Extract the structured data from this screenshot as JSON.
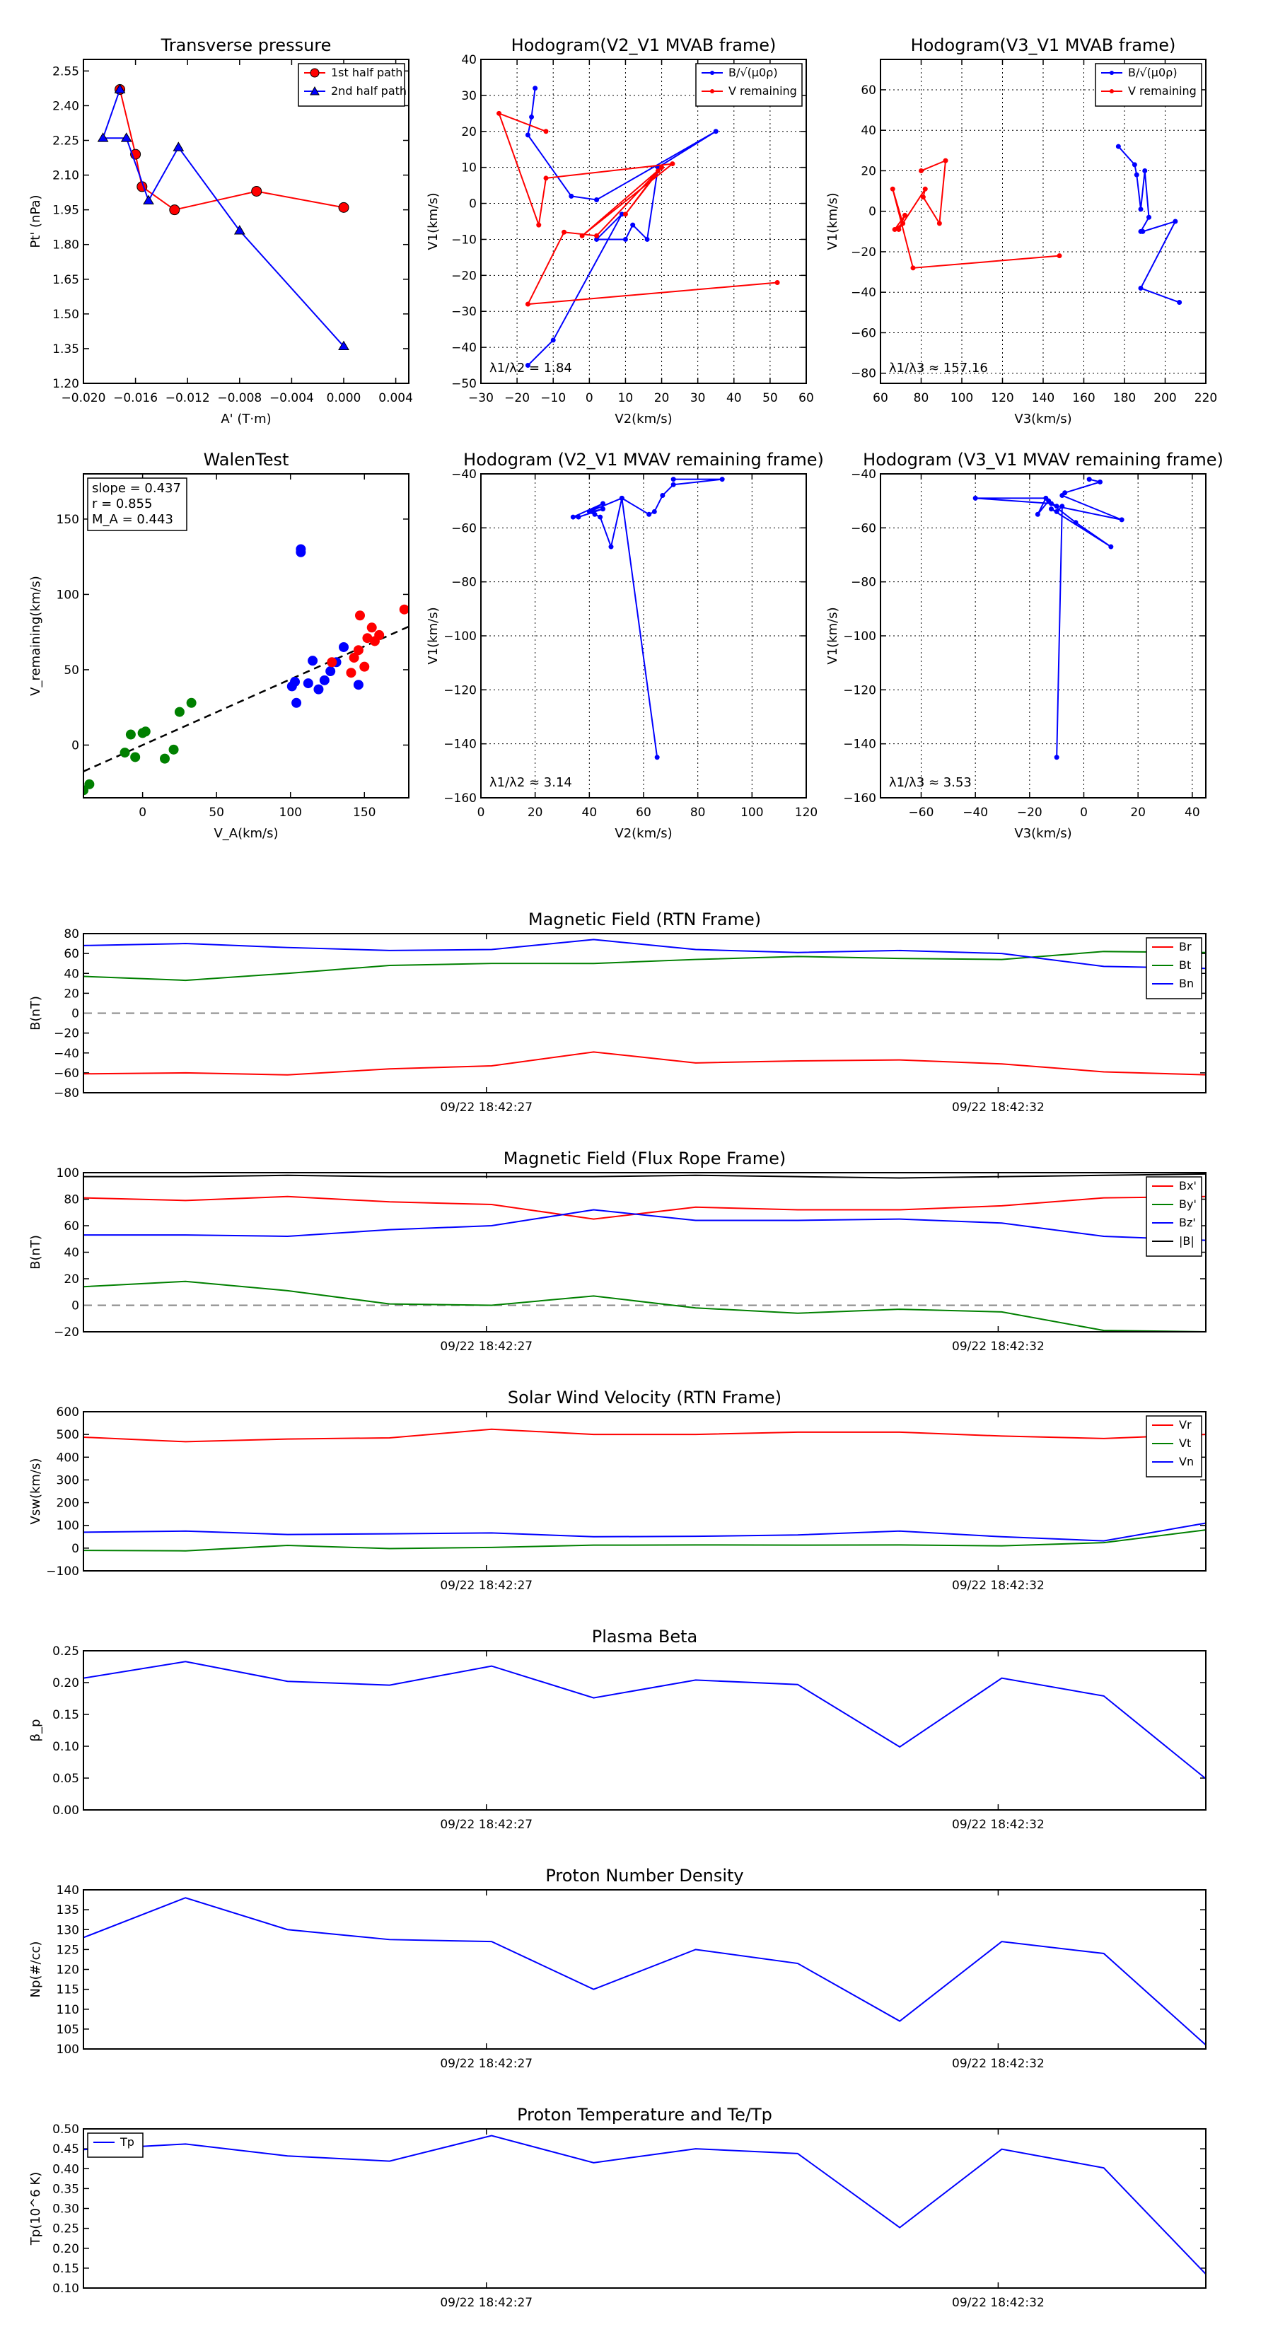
{
  "figure_title": "",
  "time_ticks": [
    "09/22 18:42:27",
    "09/22 18:42:32"
  ],
  "chart_data": [
    {
      "id": "transverse",
      "type": "scatter",
      "title": "Transverse pressure",
      "xlabel": "A' (T·m)",
      "ylabel": "Pt' (nPa)",
      "xlim": [
        -0.02,
        0.005
      ],
      "ylim": [
        1.2,
        2.6
      ],
      "xticks": [
        -0.02,
        -0.016,
        -0.012,
        -0.008,
        -0.004,
        0.0,
        0.004
      ],
      "xtick_labels": [
        "−0.020",
        "−0.016",
        "−0.012",
        "−0.008",
        "−0.004",
        "0.000",
        "0.004"
      ],
      "yticks": [
        1.2,
        1.35,
        1.5,
        1.65,
        1.8,
        1.95,
        2.1,
        2.25,
        2.4,
        2.55
      ],
      "ytick_labels": [
        "1.20",
        "1.35",
        "1.50",
        "1.65",
        "1.80",
        "1.95",
        "2.10",
        "2.25",
        "2.40",
        "2.55"
      ],
      "legend": "top-right",
      "series": [
        {
          "name": "1st half path",
          "color": "#ff0000",
          "marker": "circle",
          "x": [
            0.0,
            -0.0067,
            -0.013,
            -0.0155,
            -0.016,
            -0.0172
          ],
          "y": [
            1.96,
            2.03,
            1.95,
            2.05,
            2.19,
            2.47
          ]
        },
        {
          "name": "2nd half path",
          "color": "#0000ff",
          "marker": "triangle",
          "x": [
            -0.0172,
            -0.0185,
            -0.0167,
            -0.015,
            -0.0127,
            -0.008,
            0.0
          ],
          "y": [
            2.47,
            2.26,
            2.26,
            1.99,
            2.22,
            1.86,
            1.36
          ]
        }
      ]
    },
    {
      "id": "hodo_v2v1",
      "type": "line",
      "title": "Hodogram(V2_V1 MVAB frame)",
      "xlabel": "V2(km/s)",
      "ylabel": "V1(km/s)",
      "xlim": [
        -30,
        60
      ],
      "ylim": [
        -50,
        40
      ],
      "xticks": [
        -30,
        -20,
        -10,
        0,
        10,
        20,
        30,
        40,
        50,
        60
      ],
      "yticks": [
        -50,
        -40,
        -30,
        -20,
        -10,
        0,
        10,
        20,
        30,
        40
      ],
      "grid": true,
      "annotation": "λ1/λ2 = 1.84",
      "legend": "top-right",
      "series": [
        {
          "name": "B/√(μ0ρ)",
          "color": "#0000ff",
          "x": [
            -15,
            -16,
            -17,
            -5,
            2,
            35,
            19,
            16,
            12,
            10,
            2,
            9,
            -10,
            -17
          ],
          "y": [
            32,
            24,
            19,
            2,
            1,
            20,
            10,
            -10,
            -6,
            -10,
            -10,
            -3,
            -38,
            -45
          ]
        },
        {
          "name": "V remaining",
          "color": "#ff0000",
          "x": [
            -12,
            -25,
            -14,
            -12,
            23,
            -2,
            20,
            10,
            19,
            2,
            -7,
            -17,
            52
          ],
          "y": [
            20,
            25,
            -6,
            7,
            11,
            -9,
            10,
            -3,
            9,
            -9,
            -8,
            -28,
            -22
          ]
        }
      ]
    },
    {
      "id": "hodo_v3v1",
      "type": "line",
      "title": "Hodogram(V3_V1 MVAB frame)",
      "xlabel": "V3(km/s)",
      "ylabel": "V1(km/s)",
      "xlim": [
        60,
        220
      ],
      "ylim": [
        -85,
        75
      ],
      "xticks": [
        60,
        80,
        100,
        120,
        140,
        160,
        180,
        200,
        220
      ],
      "yticks": [
        -80,
        -60,
        -40,
        -20,
        0,
        20,
        40,
        60
      ],
      "grid": true,
      "annotation": "λ1/λ3 ≈ 157.16",
      "legend": "top-right",
      "series": [
        {
          "name": "B/√(μ0ρ)",
          "color": "#0000ff",
          "x": [
            177,
            185,
            186,
            188,
            190,
            192,
            188,
            189,
            205,
            188,
            207
          ],
          "y": [
            32,
            23,
            18,
            1,
            20,
            -3,
            -10,
            -10,
            -5,
            -38,
            -45
          ]
        },
        {
          "name": "V remaining",
          "color": "#ff0000",
          "x": [
            80,
            92,
            89,
            81,
            82,
            69,
            72,
            67,
            71,
            66,
            76,
            148
          ],
          "y": [
            20,
            25,
            -6,
            7,
            11,
            -9,
            -2,
            -9,
            -6,
            11,
            -28,
            -22
          ]
        }
      ]
    },
    {
      "id": "walen",
      "type": "scatter",
      "title": "WalenTest",
      "xlabel": "V_A(km/s)",
      "ylabel": "V_remaining(km/s)",
      "xlim": [
        -40,
        180
      ],
      "ylim": [
        -35,
        180
      ],
      "xticks": [
        0,
        50,
        100,
        150
      ],
      "yticks": [
        0,
        50,
        100,
        150
      ],
      "stats": [
        "slope = 0.437",
        "r = 0.855",
        "M_A = 0.443"
      ],
      "fit_line": {
        "slope": 0.437,
        "intercept": 0
      },
      "series": [
        {
          "name": "green",
          "color": "#008000",
          "x": [
            -40,
            -36,
            -12,
            -8,
            -5,
            0,
            2,
            15,
            21,
            25,
            33
          ],
          "y": [
            -30,
            -26,
            -5,
            7,
            -8,
            8,
            9,
            -9,
            -3,
            22,
            28
          ]
        },
        {
          "name": "blue",
          "color": "#0000ff",
          "x": [
            101,
            103,
            104,
            107,
            112,
            115,
            119,
            123,
            127,
            131,
            136,
            146,
            107
          ],
          "y": [
            39,
            42,
            28,
            130,
            41,
            56,
            37,
            43,
            49,
            55,
            65,
            40,
            128
          ]
        },
        {
          "name": "red",
          "color": "#ff0000",
          "x": [
            128,
            141,
            143,
            146,
            147,
            150,
            152,
            155,
            157,
            160,
            177
          ],
          "y": [
            55,
            48,
            58,
            63,
            86,
            52,
            71,
            78,
            69,
            73,
            90
          ]
        }
      ]
    },
    {
      "id": "hodo_mvav21",
      "type": "line",
      "title": "Hodogram (V2_V1 MVAV remaining frame)",
      "xlabel": "V2(km/s)",
      "ylabel": "V1(km/s)",
      "xlim": [
        0,
        120
      ],
      "ylim": [
        -160,
        -40
      ],
      "xticks": [
        0,
        20,
        40,
        60,
        80,
        100,
        120
      ],
      "yticks": [
        -160,
        -140,
        -120,
        -100,
        -80,
        -60,
        -40
      ],
      "grid": true,
      "annotation": "λ1/λ2 ≈ 3.14",
      "series": [
        {
          "name": "V",
          "color": "#0000ff",
          "x": [
            71,
            89,
            71,
            67,
            64,
            62,
            52,
            48,
            44,
            42,
            41,
            45,
            36,
            34,
            45,
            40,
            52,
            65
          ],
          "y": [
            -42,
            -42,
            -44,
            -48,
            -54,
            -55,
            -49,
            -67,
            -56,
            -55,
            -54,
            -53,
            -56,
            -56,
            -51,
            -54,
            -49,
            -145
          ]
        }
      ]
    },
    {
      "id": "hodo_mvav31",
      "type": "line",
      "title": "Hodogram (V3_V1 MVAV remaining frame)",
      "xlabel": "V3(km/s)",
      "ylabel": "V1(km/s)",
      "xlim": [
        -75,
        45
      ],
      "ylim": [
        -160,
        -40
      ],
      "xticks": [
        -60,
        -40,
        -20,
        0,
        20,
        40
      ],
      "yticks": [
        -160,
        -140,
        -120,
        -100,
        -80,
        -60,
        -40
      ],
      "grid": true,
      "annotation": "λ1/λ3 ≈ 3.53",
      "series": [
        {
          "name": "V",
          "color": "#0000ff",
          "x": [
            2,
            6,
            -7,
            -8,
            14,
            -10,
            -13,
            -17,
            -14,
            -40,
            -12,
            -3,
            10,
            -12,
            -10,
            -8,
            -10
          ],
          "y": [
            -42,
            -43,
            -47,
            -48,
            -57,
            -52,
            -50,
            -55,
            -49,
            -49,
            -51,
            -58,
            -67,
            -53,
            -54,
            -52,
            -145
          ]
        }
      ]
    },
    {
      "id": "bfield_rtn",
      "type": "line",
      "title": "Magnetic Field (RTN Frame)",
      "ylabel": "B(nT)",
      "ylim": [
        -80,
        80
      ],
      "yticks": [
        -80,
        -60,
        -40,
        -20,
        0,
        20,
        40,
        60,
        80
      ],
      "zero_line": true,
      "legend": "top-right",
      "series": [
        {
          "name": "Br",
          "color": "#ff0000",
          "values": [
            -61,
            -60,
            -62,
            -56,
            -53,
            -39,
            -50,
            -48,
            -47,
            -51,
            -59,
            -62
          ]
        },
        {
          "name": "Bt",
          "color": "#008000",
          "values": [
            37,
            33,
            40,
            48,
            50,
            50,
            54,
            57,
            55,
            54,
            62,
            61
          ]
        },
        {
          "name": "Bn",
          "color": "#0000ff",
          "values": [
            68,
            70,
            66,
            63,
            64,
            74,
            64,
            61,
            63,
            60,
            47,
            45
          ]
        }
      ]
    },
    {
      "id": "bfield_fr",
      "type": "line",
      "title": "Magnetic Field (Flux Rope Frame)",
      "ylabel": "B(nT)",
      "ylim": [
        -20,
        100
      ],
      "yticks": [
        -20,
        0,
        20,
        40,
        60,
        80,
        100
      ],
      "zero_line": true,
      "legend": "top-right",
      "series": [
        {
          "name": "Bx'",
          "color": "#ff0000",
          "values": [
            81,
            79,
            82,
            78,
            76,
            65,
            74,
            72,
            72,
            75,
            81,
            82
          ]
        },
        {
          "name": "By'",
          "color": "#008000",
          "values": [
            14,
            18,
            11,
            1,
            0,
            7,
            -2,
            -6,
            -3,
            -5,
            -19,
            -20
          ]
        },
        {
          "name": "Bz'",
          "color": "#0000ff",
          "values": [
            53,
            53,
            52,
            57,
            60,
            72,
            64,
            64,
            65,
            62,
            52,
            49
          ]
        },
        {
          "name": "|B|",
          "color": "#000000",
          "values": [
            97,
            97,
            98,
            97,
            97,
            97,
            98,
            97,
            96,
            97,
            98,
            99
          ]
        }
      ]
    },
    {
      "id": "velocity",
      "type": "line",
      "title": "Solar Wind Velocity (RTN Frame)",
      "ylabel": "Vsw(km/s)",
      "ylim": [
        -100,
        600
      ],
      "yticks": [
        -100,
        0,
        100,
        200,
        300,
        400,
        500,
        600
      ],
      "legend": "top-right",
      "series": [
        {
          "name": "Vr",
          "color": "#ff0000",
          "values": [
            488,
            468,
            480,
            485,
            523,
            500,
            500,
            510,
            510,
            493,
            482,
            500
          ]
        },
        {
          "name": "Vt",
          "color": "#008000",
          "values": [
            -10,
            -12,
            12,
            -2,
            3,
            13,
            14,
            13,
            14,
            10,
            24,
            80
          ]
        },
        {
          "name": "Vn",
          "color": "#0000ff",
          "values": [
            70,
            75,
            60,
            63,
            67,
            50,
            52,
            58,
            75,
            50,
            32,
            110
          ]
        }
      ]
    },
    {
      "id": "beta",
      "type": "line",
      "title": "Plasma Beta",
      "ylabel": "β_p",
      "ylim": [
        0.0,
        0.25
      ],
      "yticks": [
        0.0,
        0.05,
        0.1,
        0.15,
        0.2,
        0.25
      ],
      "ytick_labels": [
        "0.00",
        "0.05",
        "0.10",
        "0.15",
        "0.20",
        "0.25"
      ],
      "series": [
        {
          "name": "beta",
          "color": "#0000ff",
          "values": [
            0.207,
            0.233,
            0.202,
            0.196,
            0.226,
            0.176,
            0.204,
            0.197,
            0.099,
            0.207,
            0.179,
            0.049
          ]
        }
      ]
    },
    {
      "id": "density",
      "type": "line",
      "title": "Proton Number Density",
      "ylabel": "Np(#/cc)",
      "ylim": [
        100,
        140
      ],
      "yticks": [
        100,
        105,
        110,
        115,
        120,
        125,
        130,
        135,
        140
      ],
      "series": [
        {
          "name": "Np",
          "color": "#0000ff",
          "values": [
            128,
            138,
            130,
            127.5,
            127,
            115,
            125,
            121.5,
            107,
            127,
            124,
            101
          ]
        }
      ]
    },
    {
      "id": "temperature",
      "type": "line",
      "title": "Proton Temperature and Te/Tp",
      "ylabel": "Tp(10^6 K)",
      "ylim": [
        0.1,
        0.5
      ],
      "yticks": [
        0.1,
        0.15,
        0.2,
        0.25,
        0.3,
        0.35,
        0.4,
        0.45,
        0.5
      ],
      "ytick_labels": [
        "0.10",
        "0.15",
        "0.20",
        "0.25",
        "0.30",
        "0.35",
        "0.40",
        "0.45",
        "0.50"
      ],
      "legend": "top-left",
      "series": [
        {
          "name": "Tp",
          "color": "#0000ff",
          "values": [
            0.448,
            0.462,
            0.432,
            0.419,
            0.483,
            0.415,
            0.45,
            0.438,
            0.252,
            0.449,
            0.402,
            0.135
          ]
        }
      ]
    }
  ]
}
